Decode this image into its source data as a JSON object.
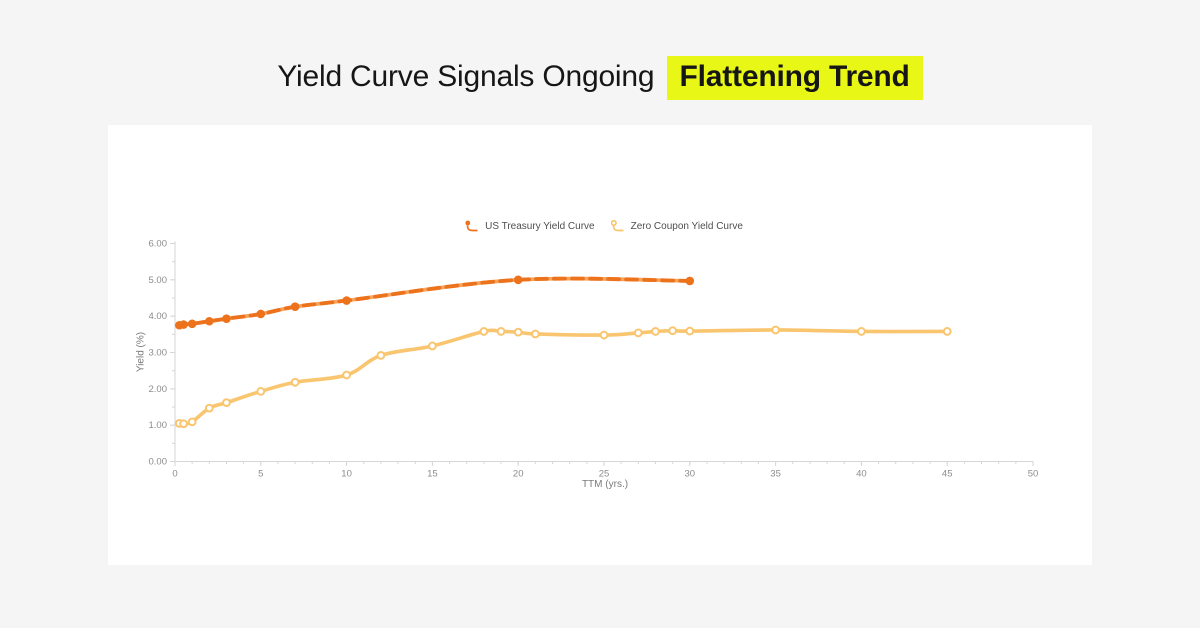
{
  "page": {
    "background": "#F5F5F6",
    "card_background": "#FFFFFF"
  },
  "title": {
    "prefix": "Yield Curve Signals Ongoing",
    "highlight": "Flattening Trend",
    "highlight_color": "#E8F716",
    "text_color": "#161616"
  },
  "chart_data": {
    "type": "line",
    "title": "",
    "xlabel": "TTM (yrs.)",
    "ylabel": "Yield (%)",
    "xlim": [
      0,
      50
    ],
    "ylim": [
      0,
      6
    ],
    "x_major_ticks": [
      0,
      5,
      10,
      15,
      20,
      25,
      30,
      35,
      40,
      45,
      50
    ],
    "x_minor_step": 1,
    "y_major_tick_labels": [
      "0.00",
      "1.00",
      "2.00",
      "3.00",
      "4.00",
      "5.00",
      "6.00"
    ],
    "y_minor_step": 0.5,
    "grid": false,
    "legend_position": "top-center",
    "axis_color": "#D6D6D6",
    "tick_label_color": "#8C8C8C",
    "series": [
      {
        "name": "US Treasury Yield Curve",
        "color": "#ED721C",
        "underlay_color": "#F6A55E",
        "line_style": "dashed",
        "marker": "filled-circle",
        "x": [
          0.25,
          0.5,
          1,
          2,
          3,
          5,
          7,
          10,
          20,
          30
        ],
        "y": [
          3.75,
          3.77,
          3.79,
          3.86,
          3.93,
          4.06,
          4.26,
          4.43,
          5.0,
          4.97
        ]
      },
      {
        "name": "Zero Coupon Yield Curve",
        "color": "#F9C56F",
        "underlay_color": "#F9C56F",
        "line_style": "solid",
        "marker": "open-circle",
        "x": [
          0.25,
          0.5,
          1,
          2,
          3,
          5,
          7,
          10,
          12,
          15,
          18,
          19,
          20,
          21,
          25,
          27,
          28,
          29,
          30,
          35,
          40,
          45
        ],
        "y": [
          1.05,
          1.04,
          1.09,
          1.47,
          1.62,
          1.93,
          2.18,
          2.38,
          2.92,
          3.18,
          3.58,
          3.58,
          3.56,
          3.51,
          3.48,
          3.54,
          3.58,
          3.6,
          3.59,
          3.62,
          3.58,
          3.58
        ]
      }
    ]
  }
}
